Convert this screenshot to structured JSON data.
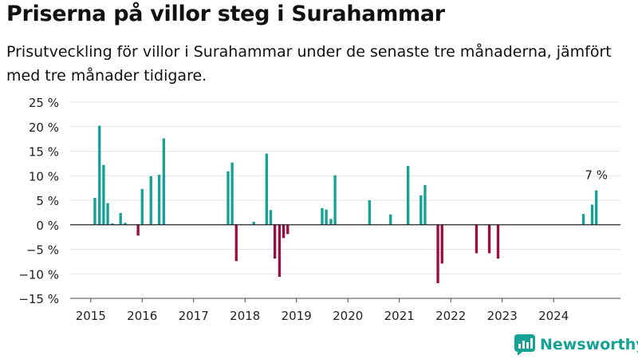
{
  "title": "Priserna på villor steg i Surahammar",
  "subtitle": "Prisutveckling för villor i Surahammar under de senaste tre månaderna, jämfört med tre månader tidigare.",
  "brand": {
    "name": "Newsworthy",
    "icon": "bar-chart-logo-icon",
    "color": "#15a295"
  },
  "chart_data": {
    "type": "bar",
    "y_ticks": [
      "25 %",
      "20 %",
      "15 %",
      "10 %",
      "5 %",
      "0 %",
      "−5 %",
      "−10 %",
      "−15 %"
    ],
    "x_ticks": [
      "2015",
      "2016",
      "2017",
      "2018",
      "2019",
      "2020",
      "2021",
      "2022",
      "2023",
      "2024"
    ],
    "ylim": [
      -15,
      25
    ],
    "xlim": [
      2014.6,
      2025.3
    ],
    "grid": true,
    "colors": {
      "positive": "#15a295",
      "negative": "#990d40"
    },
    "annotation": {
      "text": "7 %",
      "x": 2024.83,
      "y": 7
    },
    "x": [
      2015.08,
      2015.17,
      2015.25,
      2015.33,
      2015.42,
      2015.58,
      2015.67,
      2015.92,
      2016.0,
      2016.17,
      2016.33,
      2016.42,
      2017.67,
      2017.75,
      2017.83,
      2018.17,
      2018.42,
      2018.5,
      2018.58,
      2018.67,
      2018.75,
      2018.83,
      2019.5,
      2019.58,
      2019.67,
      2019.75,
      2020.42,
      2020.83,
      2021.17,
      2021.42,
      2021.5,
      2021.75,
      2021.83,
      2022.5,
      2022.75,
      2022.92,
      2024.58,
      2024.75,
      2024.83
    ],
    "values": [
      5.5,
      20.2,
      12.2,
      4.4,
      0.3,
      2.4,
      0.4,
      -2.2,
      7.3,
      9.9,
      10.2,
      17.6,
      10.9,
      12.7,
      -7.4,
      0.6,
      14.5,
      3.0,
      -6.9,
      -10.6,
      -2.7,
      -1.9,
      3.4,
      3.1,
      1.2,
      10.1,
      5.0,
      2.1,
      12.0,
      6.0,
      8.1,
      -11.9,
      -7.9,
      -5.8,
      -5.8,
      -6.9,
      2.2,
      4.1,
      7.0
    ]
  }
}
